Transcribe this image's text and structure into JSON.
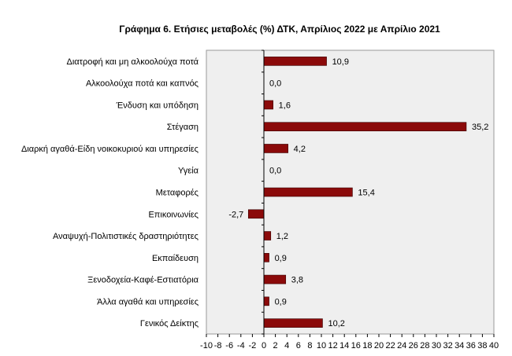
{
  "chart_data": {
    "type": "bar",
    "orientation": "horizontal",
    "title": "Γράφημα 6. Ετήσιες μεταβολές (%) ΔΤΚ, Απρίλιος 2022 με Απρίλιο 2021",
    "categories": [
      "Διατροφή και μη αλκοολούχα ποτά",
      "Αλκοολούχα ποτά και καπνός",
      "Ένδυση και υπόδηση",
      "Στέγαση",
      "Διαρκή αγαθά-Είδη νοικοκυριού και υπηρεσίες",
      "Υγεία",
      "Μεταφορές",
      "Επικοινωνίες",
      "Αναψυχή-Πολιτιστικές δραστηριότητες",
      "Εκπαίδευση",
      "Ξενοδοχεία-Καφέ-Εστιατόρια",
      "Άλλα αγαθά και υπηρεσίες",
      "Γενικός Δείκτης"
    ],
    "values": [
      10.9,
      0.0,
      1.6,
      35.2,
      4.2,
      0.0,
      15.4,
      -2.7,
      1.2,
      0.9,
      3.8,
      0.9,
      10.2
    ],
    "value_labels": [
      "10,9",
      "0,0",
      "1,6",
      "35,2",
      "4,2",
      "0,0",
      "15,4",
      "-2,7",
      "1,2",
      "0,9",
      "3,8",
      "0,9",
      "10,2"
    ],
    "xlim": [
      -10,
      40
    ],
    "xticks": [
      -10,
      -8,
      -6,
      -4,
      -2,
      0,
      2,
      4,
      6,
      8,
      10,
      12,
      14,
      16,
      18,
      20,
      22,
      24,
      26,
      28,
      30,
      32,
      34,
      36,
      38,
      40
    ],
    "grid": false,
    "colors": {
      "bar": "#8b0a0a",
      "bar_stroke": "#3a0000",
      "plot_bg": "#efefef",
      "axis": "#000000"
    }
  }
}
